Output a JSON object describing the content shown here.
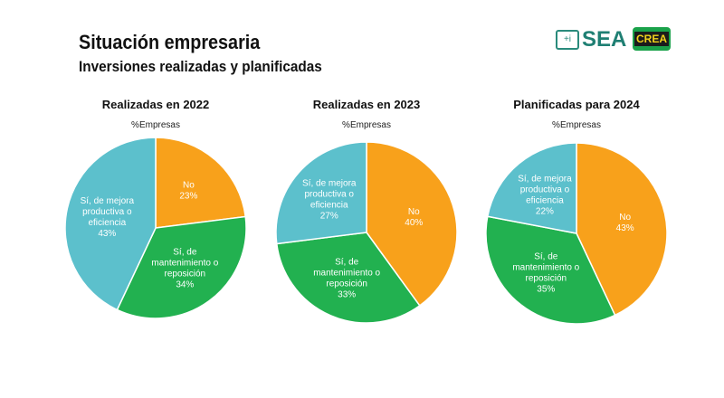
{
  "header": {
    "title": "Situación empresaria",
    "subtitle": "Inversiones realizadas y planificadas",
    "logo_sea": "SEA",
    "logo_crea": "CREA"
  },
  "colors": {
    "No": "#F8A11B",
    "Mantenimiento": "#22B150",
    "Mejora": "#5CC0CC"
  },
  "chart_data": [
    {
      "type": "pie",
      "title": "Realizadas en 2022",
      "subtitle": "%Empresas",
      "slices": [
        {
          "label": "No",
          "value": 23,
          "lines": [
            "No",
            "23%"
          ]
        },
        {
          "label": "Sí, de mantenimiento o reposición",
          "value": 34,
          "lines": [
            "Sí, de",
            "mantenimiento o",
            "reposición",
            "34%"
          ]
        },
        {
          "label": "Sí, de mejora productiva o eficiencia",
          "value": 43,
          "lines": [
            "Sí, de mejora",
            "productiva o",
            "eficiencia",
            "43%"
          ]
        }
      ]
    },
    {
      "type": "pie",
      "title": "Realizadas en 2023",
      "subtitle": "%Empresas",
      "slices": [
        {
          "label": "No",
          "value": 40,
          "lines": [
            "No",
            "40%"
          ]
        },
        {
          "label": "Sí, de mantenimiento o reposición",
          "value": 33,
          "lines": [
            "Sí, de",
            "mantenimiento o",
            "reposición",
            "33%"
          ]
        },
        {
          "label": "Sí, de mejora productiva o eficiencia",
          "value": 27,
          "lines": [
            "Sí, de mejora",
            "productiva o",
            "eficiencia",
            "27%"
          ]
        }
      ]
    },
    {
      "type": "pie",
      "title": "Planificadas para 2024",
      "subtitle": "%Empresas",
      "slices": [
        {
          "label": "No",
          "value": 43,
          "lines": [
            "No",
            "43%"
          ]
        },
        {
          "label": "Sí, de mantenimiento o reposición",
          "value": 35,
          "lines": [
            "Sí, de",
            "mantenimiento o",
            "reposición",
            "35%"
          ]
        },
        {
          "label": "Sí, de mejora productiva o eficiencia",
          "value": 22,
          "lines": [
            "Sí, de mejora",
            "productiva o",
            "eficiencia",
            "22%"
          ]
        }
      ]
    }
  ]
}
